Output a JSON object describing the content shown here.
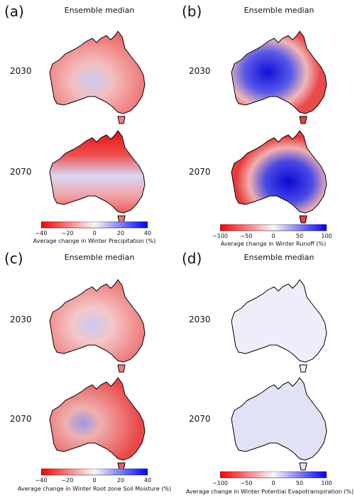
{
  "panels": [
    {
      "id": "a",
      "label": "(a)",
      "title": "Ensemble median",
      "rows": [
        "2030",
        "2070"
      ],
      "colorbar": {
        "ticks": [
          "−40",
          "−20",
          "0",
          "20",
          "40"
        ],
        "label": "Average change in Winter Precipitation (%)"
      },
      "map_tone": [
        "reddish",
        "strongly reddish in north"
      ]
    },
    {
      "id": "b",
      "label": "(b)",
      "title": "Ensemble median",
      "rows": [
        "2030",
        "2070"
      ],
      "colorbar": {
        "ticks": [
          "−100",
          "−50",
          "0",
          "50",
          "100"
        ],
        "label": "Average change in Winter Runoff (%)"
      },
      "map_tone": [
        "mixed red/blue, blue in centre-west",
        "mixed red/blue, blue in centre-east"
      ]
    },
    {
      "id": "c",
      "label": "(c)",
      "title": "Ensemble median",
      "rows": [
        "2030",
        "2070"
      ],
      "colorbar": {
        "ticks": [
          "−40",
          "−20",
          "0",
          "20",
          "40"
        ],
        "label": "Average change in Winter Root zone Soil Moisture (%)"
      },
      "map_tone": [
        "reddish",
        "reddish"
      ]
    },
    {
      "id": "d",
      "label": "(d)",
      "title": "Ensemble median",
      "rows": [
        "2030",
        "2070"
      ],
      "colorbar": {
        "ticks": [
          "−100",
          "−50",
          "0",
          "50",
          "100"
        ],
        "label": "Average change in Winter Potential Evapotranspiration (%)"
      },
      "map_tone": [
        "very pale blue",
        "pale blue"
      ]
    }
  ],
  "colors": {
    "red": "#e8101a",
    "white": "#f6f6f6",
    "blue": "#1010e0"
  },
  "icons": [
    "australia-outline"
  ]
}
